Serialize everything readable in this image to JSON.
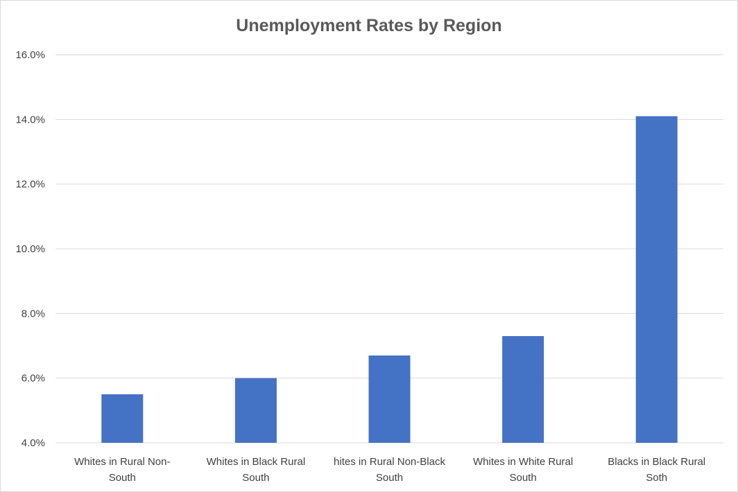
{
  "chart_data": {
    "type": "bar",
    "title": "Unemployment Rates by Region",
    "xlabel": "",
    "ylabel": "",
    "categories": [
      [
        "Whites in Rural Non-",
        "South"
      ],
      [
        "Whites in Black Rural",
        "South"
      ],
      [
        "hites in Rural Non-Black",
        "South"
      ],
      [
        "Whites in White Rural",
        "South"
      ],
      [
        "Blacks in Black Rural",
        "Soth"
      ]
    ],
    "values": [
      5.5,
      6.0,
      6.7,
      7.3,
      14.1
    ],
    "ylim": [
      4.0,
      16.0
    ],
    "yticks": [
      4.0,
      6.0,
      8.0,
      10.0,
      12.0,
      14.0,
      16.0
    ],
    "ytick_labels": [
      "4.0%",
      "6.0%",
      "8.0%",
      "10.0%",
      "12.0%",
      "14.0%",
      "16.0%"
    ],
    "grid": true,
    "legend": "none",
    "colors": {
      "bar": "#4472c4",
      "grid": "#d9d9d9",
      "text": "#595959",
      "axis_text": "#404040"
    }
  }
}
